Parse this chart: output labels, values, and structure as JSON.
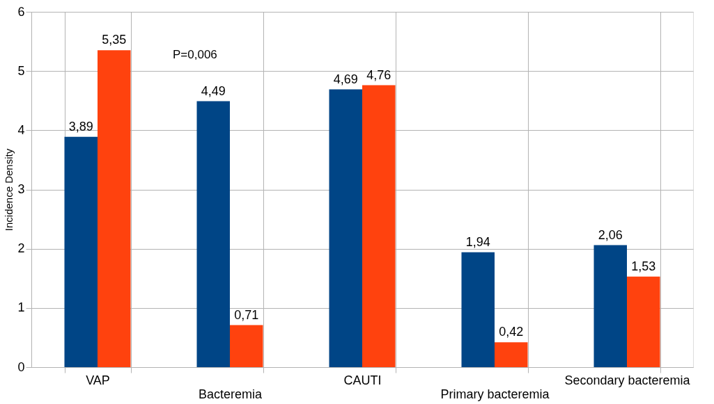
{
  "chart_data": {
    "type": "bar",
    "ylabel": "Incidence Density",
    "categories": [
      "VAP",
      "Bacteremia",
      "CAUTI",
      "Primary bacteremia",
      "Secondary bacteremia"
    ],
    "series": [
      {
        "color": "#004586",
        "values": [
          3.89,
          4.49,
          4.69,
          1.94,
          2.06
        ],
        "value_labels": [
          "3,89",
          "4,49",
          "4,69",
          "1,94",
          "2,06"
        ]
      },
      {
        "color": "#ff420e",
        "values": [
          5.35,
          0.71,
          4.76,
          0.42,
          1.53
        ],
        "value_labels": [
          "5,35",
          "0,71",
          "4,76",
          "0,42",
          "1,53"
        ]
      }
    ],
    "ylim": [
      0,
      6
    ],
    "yticks": [
      0,
      1,
      2,
      3,
      4,
      5,
      6
    ],
    "grid": true,
    "legend": false,
    "annotations": [
      "P=0,006"
    ]
  }
}
